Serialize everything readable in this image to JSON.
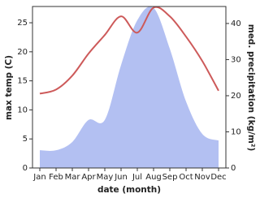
{
  "chart_data": {
    "type": "line-area",
    "x_label": "date (month)",
    "y_label": "max temp (C)",
    "y2_label": "med. precipitation (kg/m²)",
    "categories": [
      "Jan",
      "Feb",
      "Mar",
      "Apr",
      "May",
      "Jun",
      "Jul",
      "Aug",
      "Sep",
      "Oct",
      "Nov",
      "Dec"
    ],
    "series": [
      {
        "name": "max temp",
        "color": "#cd5a5a",
        "values": [
          12.8,
          13.5,
          15.9,
          19.7,
          22.9,
          26.1,
          23.3,
          27.6,
          26.1,
          22.6,
          18.4,
          13.3
        ]
      },
      {
        "name": "med. precipitation",
        "color": "#b3c0f2",
        "axis": "y2",
        "values": [
          4.9,
          4.9,
          7.2,
          13.3,
          13.3,
          28.5,
          40.9,
          44.3,
          33,
          18.4,
          9.4,
          7.6
        ]
      }
    ],
    "ylim": [
      0,
      27.8
    ],
    "yticks": [
      0,
      5,
      10,
      15,
      20,
      25
    ],
    "y2lim": [
      0,
      44.7
    ],
    "y2ticks": [
      0,
      10,
      20,
      30,
      40
    ]
  }
}
